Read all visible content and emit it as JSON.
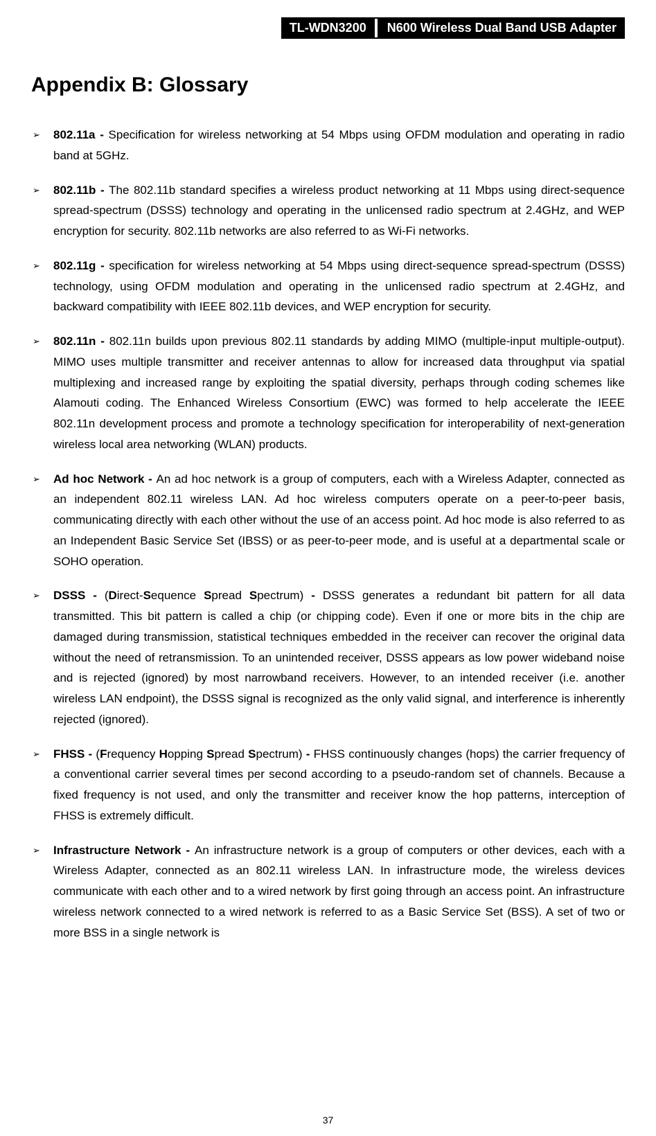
{
  "header": {
    "model": "TL-WDN3200",
    "product": "N600 Wireless Dual Band USB Adapter"
  },
  "title": "Appendix B: Glossary",
  "bullet": "➢",
  "items": [
    {
      "term": "802.11a - ",
      "definition": "Specification for wireless networking at 54 Mbps using OFDM modulation and operating in radio band at 5GHz."
    },
    {
      "term": "802.11b - ",
      "definition": "The 802.11b standard specifies a wireless product networking at 11 Mbps using direct-sequence spread-spectrum (DSSS) technology and operating in the unlicensed radio spectrum at 2.4GHz, and WEP encryption for security. 802.11b networks are also referred to as Wi-Fi networks."
    },
    {
      "term": "802.11g - ",
      "definition": "specification for wireless networking at 54 Mbps using direct-sequence spread-spectrum (DSSS) technology, using OFDM modulation and operating in the unlicensed radio spectrum at 2.4GHz, and backward compatibility with IEEE 802.11b devices, and WEP encryption for security."
    },
    {
      "term": "802.11n - ",
      "definition": "802.11n builds upon previous 802.11 standards by adding MIMO (multiple-input multiple-output). MIMO uses multiple transmitter and receiver antennas to allow for increased data throughput via spatial multiplexing and increased range by exploiting the spatial diversity, perhaps through coding schemes like Alamouti coding. The Enhanced Wireless Consortium (EWC) was formed to help accelerate the IEEE 802.11n development process and promote a technology specification for interoperability of next-generation wireless local area networking (WLAN) products."
    },
    {
      "term": "Ad hoc Network - ",
      "definition": "An ad hoc network is a group of computers, each with a Wireless Adapter, connected as an independent 802.11 wireless LAN. Ad hoc wireless computers operate on a peer-to-peer basis, communicating directly with each other without the use of an access point. Ad hoc mode is also referred to as an Independent Basic Service Set (IBSS) or as peer-to-peer mode, and is useful at a departmental scale or SOHO operation."
    },
    {
      "term": "DSSS - ",
      "prefix": "(",
      "inner_bold_parts": [
        "D",
        "S",
        "S",
        "S"
      ],
      "inner_normal_parts": [
        "irect-",
        "equence ",
        "pread ",
        "pectrum) "
      ],
      "dash": "- ",
      "definition": "DSSS generates a redundant bit pattern for all data transmitted. This bit pattern is called a chip (or chipping code). Even if one or more bits in the chip are damaged during transmission, statistical techniques embedded in the receiver can recover the original data without the need of retransmission. To an unintended receiver, DSSS appears as low power wideband noise and is rejected (ignored) by most narrowband receivers. However, to an intended receiver (i.e. another wireless LAN endpoint), the DSSS signal is recognized as the only valid signal, and interference is inherently rejected (ignored)."
    },
    {
      "term": "FHSS - ",
      "prefix": "(",
      "inner_bold_parts": [
        "F",
        "H",
        "S",
        "S"
      ],
      "inner_normal_parts": [
        "requency ",
        "opping ",
        "pread ",
        "pectrum) "
      ],
      "dash": "- ",
      "definition": "FHSS continuously changes (hops) the carrier frequency of a conventional carrier several times per second according to a pseudo-random set of channels. Because a fixed frequency is not used, and only the transmitter and receiver know the hop patterns, interception of FHSS is extremely difficult."
    },
    {
      "term": "Infrastructure Network - ",
      "definition": "An infrastructure network is a group of computers or other devices, each with a Wireless Adapter, connected as an 802.11 wireless LAN. In infrastructure mode, the wireless devices communicate with each other and to a wired network by first going through an access point. An infrastructure wireless network connected to a wired network is referred to as a Basic Service Set (BSS). A set of two or more BSS in a single network is"
    }
  ],
  "page_number": "37"
}
